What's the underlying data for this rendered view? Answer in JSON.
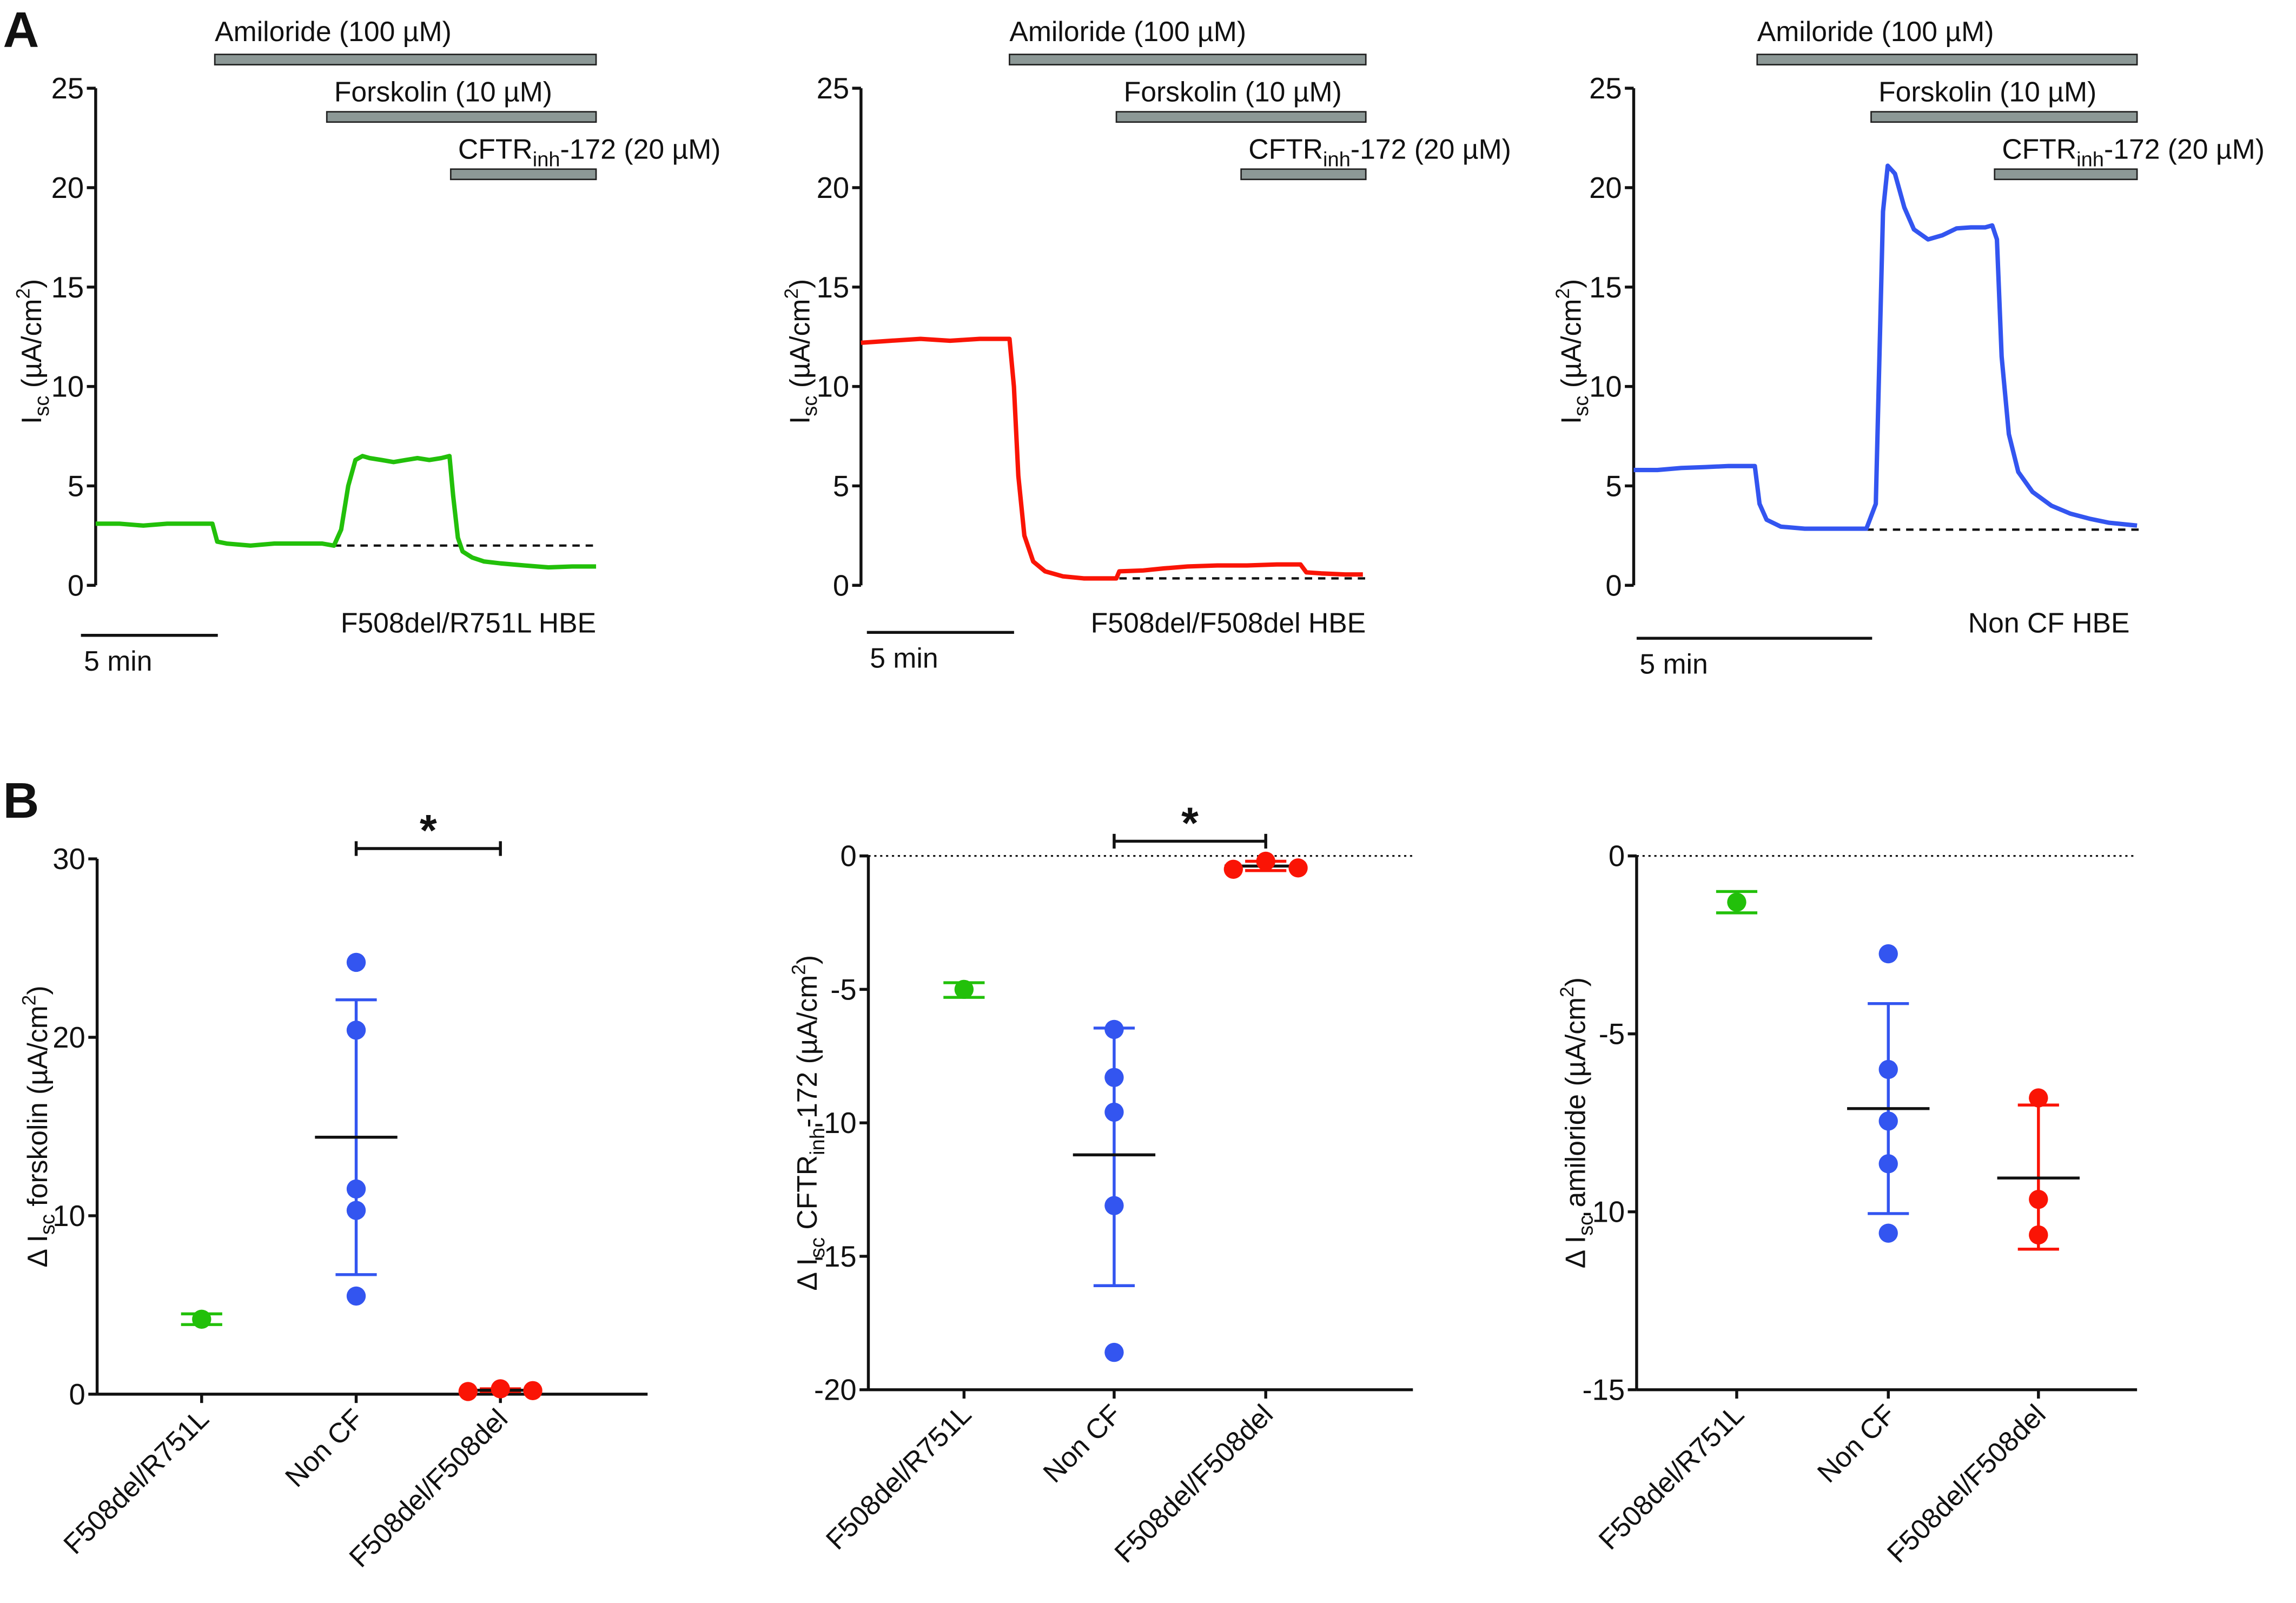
{
  "figure": {
    "panel_letters": [
      "A",
      "B"
    ]
  },
  "colors": {
    "F508del/R751L": "#22c00a",
    "F508del/F508del": "#fa1405",
    "Non CF": "#3355f0",
    "drug_bar_fill": "#8c9896",
    "axis": "#111111"
  },
  "chart_data": [
    {
      "id": "A1",
      "type": "line",
      "title": "F508del/R751L HBE",
      "ylabel": "I_sc (µA/cm²)",
      "ylabel_parts": {
        "main": "I",
        "sub": "sc",
        "rest": " (µA/cm",
        "sup": "2",
        "end": ")"
      },
      "ylim": [
        0,
        25
      ],
      "yticks": [
        "0",
        "5",
        "10",
        "15",
        "20",
        "25"
      ],
      "xlim_min": [
        0,
        21
      ],
      "scale_bar": {
        "label": "5 min",
        "minutes": 5
      },
      "color": "#22c00a",
      "drugs": [
        {
          "name": "Amiloride (100 µM)",
          "start_min": 5,
          "end_min": 21
        },
        {
          "name": "Forskolin (10 µM)",
          "start_min": 9.7,
          "end_min": 21
        },
        {
          "name": "CFTRinh-172 (20 µM)",
          "name_parts": [
            "CFTR",
            "inh",
            "-172 (20 µM)"
          ],
          "start_min": 14.9,
          "end_min": 21
        }
      ],
      "baseline": {
        "value": 2.0,
        "from_min": 10,
        "to_min": 20.9
      },
      "x_min": [
        0,
        1,
        2,
        3,
        4,
        4.9,
        5.1,
        5.5,
        6.5,
        7.5,
        8.5,
        9.5,
        10.0,
        10.3,
        10.6,
        10.9,
        11.2,
        11.5,
        12.0,
        12.5,
        13.0,
        13.5,
        14.0,
        14.5,
        14.85,
        15.0,
        15.2,
        15.4,
        15.8,
        16.3,
        17,
        18,
        19,
        20,
        21
      ],
      "y": [
        3.1,
        3.1,
        3.0,
        3.1,
        3.1,
        3.1,
        2.2,
        2.1,
        2.0,
        2.1,
        2.1,
        2.1,
        2.0,
        2.8,
        5.0,
        6.3,
        6.5,
        6.4,
        6.3,
        6.2,
        6.3,
        6.4,
        6.3,
        6.4,
        6.5,
        4.5,
        2.4,
        1.7,
        1.4,
        1.2,
        1.1,
        1.0,
        0.9,
        0.95,
        0.95
      ]
    },
    {
      "id": "A2",
      "type": "line",
      "title": "F508del/F508del HBE",
      "ylabel": "I_sc (µA/cm²)",
      "ylabel_parts": {
        "main": "I",
        "sub": "sc",
        "rest": " (µA/cm",
        "sup": "2",
        "end": ")"
      },
      "ylim": [
        0,
        25
      ],
      "yticks": [
        "0",
        "5",
        "10",
        "15",
        "20",
        "25"
      ],
      "xlim_min": [
        0,
        17
      ],
      "scale_bar": {
        "label": "5 min",
        "minutes": 5
      },
      "color": "#fa1405",
      "drugs": [
        {
          "name": "Amiloride (100 µM)",
          "start_min": 5,
          "end_min": 17
        },
        {
          "name": "Forskolin (10 µM)",
          "start_min": 8.6,
          "end_min": 17
        },
        {
          "name": "CFTRinh-172 (20 µM)",
          "name_parts": [
            "CFTR",
            "inh",
            "-172 (20 µM)"
          ],
          "start_min": 12.8,
          "end_min": 17
        }
      ],
      "baseline": {
        "value": 0.35,
        "from_min": 8.7,
        "to_min": 17
      },
      "x_min": [
        0,
        1,
        2,
        3,
        4,
        5.0,
        5.15,
        5.3,
        5.5,
        5.8,
        6.2,
        6.8,
        7.5,
        8.0,
        8.6,
        8.7,
        9.5,
        10.2,
        11,
        12,
        13,
        14,
        14.8,
        15.0,
        15.5,
        16.3,
        16.9
      ],
      "y": [
        12.2,
        12.3,
        12.4,
        12.3,
        12.4,
        12.4,
        10,
        5.5,
        2.5,
        1.2,
        0.7,
        0.45,
        0.35,
        0.35,
        0.35,
        0.7,
        0.75,
        0.85,
        0.95,
        1.0,
        1.0,
        1.05,
        1.05,
        0.65,
        0.6,
        0.55,
        0.55
      ]
    },
    {
      "id": "A3",
      "type": "line",
      "title": "Non CF HBE",
      "ylabel": "I_sc (µA/cm²)",
      "ylabel_parts": {
        "main": "I",
        "sub": "sc",
        "rest": " (µA/cm",
        "sup": "2",
        "end": ")"
      },
      "ylim": [
        0,
        25
      ],
      "yticks": [
        "0",
        "5",
        "10",
        "15",
        "20",
        "25"
      ],
      "xlim_min": [
        0,
        10.6
      ],
      "scale_bar": {
        "label": "5 min",
        "minutes": 5
      },
      "color": "#3355f0",
      "drugs": [
        {
          "name": "Amiloride (100 µM)",
          "start_min": 2.6,
          "end_min": 10.6
        },
        {
          "name": "Forskolin (10 µM)",
          "start_min": 5.0,
          "end_min": 10.6
        },
        {
          "name": "CFTRinh-172 (20 µM)",
          "name_parts": [
            "CFTR",
            "inh",
            "-172 (20 µM)"
          ],
          "start_min": 7.6,
          "end_min": 10.6
        }
      ],
      "baseline": {
        "value": 2.8,
        "from_min": 4.9,
        "to_min": 10.65
      },
      "x_min": [
        0,
        0.5,
        1.0,
        1.5,
        2.0,
        2.55,
        2.65,
        2.8,
        3.1,
        3.6,
        4.2,
        4.9,
        5.1,
        5.25,
        5.35,
        5.5,
        5.7,
        5.9,
        6.2,
        6.5,
        6.8,
        7.1,
        7.4,
        7.55,
        7.65,
        7.75,
        7.9,
        8.1,
        8.4,
        8.8,
        9.2,
        9.6,
        10.0,
        10.6
      ],
      "y": [
        5.8,
        5.8,
        5.9,
        5.95,
        6.0,
        6.0,
        4.1,
        3.3,
        2.95,
        2.85,
        2.85,
        2.85,
        4.1,
        18.8,
        21.1,
        20.7,
        19.0,
        17.9,
        17.4,
        17.6,
        17.95,
        18.0,
        18.0,
        18.1,
        17.4,
        11.5,
        7.6,
        5.7,
        4.7,
        4.0,
        3.6,
        3.35,
        3.15,
        3.0
      ]
    },
    {
      "id": "B1",
      "type": "scatter",
      "ylabel": "Δ I_sc forskolin (µA/cm²)",
      "ylabel_parts": {
        "pre": "Δ I",
        "sub": "sc",
        "rest": " forskolin (µA/cm",
        "sup": "2",
        "end": ")"
      },
      "ylim": [
        0,
        30
      ],
      "yticks": [
        "0",
        "10",
        "20",
        "30"
      ],
      "categories": [
        "F508del/R751L",
        "Non CF",
        "F508del/F508del"
      ],
      "zero_line": false,
      "series": [
        {
          "name": "F508del/R751L",
          "color": "#22c00a",
          "points": [
            4.2
          ],
          "mean": 4.2,
          "sd": [
            3.9,
            4.5
          ]
        },
        {
          "name": "Non CF",
          "color": "#3355f0",
          "points": [
            24.2,
            20.4,
            11.5,
            10.3,
            5.5
          ],
          "mean": 14.4,
          "sd": [
            6.7,
            22.1
          ]
        },
        {
          "name": "F508del/F508del",
          "color": "#fa1405",
          "points": [
            0.15,
            0.3,
            0.2
          ],
          "mean": 0.22,
          "sd": [
            0.15,
            0.3
          ]
        }
      ],
      "significance": {
        "label": "*",
        "from": "Non CF",
        "to": "F508del/F508del",
        "value": 31
      }
    },
    {
      "id": "B2",
      "type": "scatter",
      "ylabel": "Δ I_sc CFTRinh-172 (µA/cm²)",
      "ylabel_parts": {
        "pre": "Δ I",
        "sub": "sc",
        "mid": " CFTR",
        "sub2": "inh",
        "rest": "-172 (µA/cm",
        "sup": "2",
        "end": ")"
      },
      "ylim": [
        -20,
        0
      ],
      "yticks": [
        "0",
        "-5",
        "-10",
        "-15",
        "-20"
      ],
      "categories": [
        "F508del/R751L",
        "Non CF",
        "F508del/F508del"
      ],
      "zero_line": true,
      "series": [
        {
          "name": "F508del/R751L",
          "color": "#22c00a",
          "points": [
            -5.0
          ],
          "mean": -5.0,
          "sd": [
            -5.3,
            -4.75
          ]
        },
        {
          "name": "Non CF",
          "color": "#3355f0",
          "points": [
            -6.5,
            -8.3,
            -9.6,
            -13.1,
            -18.6
          ],
          "mean": -11.2,
          "sd": [
            -16.1,
            -6.45
          ]
        },
        {
          "name": "F508del/F508del",
          "color": "#fa1405",
          "points": [
            -0.5,
            -0.2,
            -0.45
          ],
          "mean": -0.38,
          "sd": [
            -0.55,
            -0.2
          ]
        }
      ],
      "significance": {
        "label": "*",
        "from": "Non CF",
        "to": "F508del/F508del",
        "value": 0.5
      }
    },
    {
      "id": "B3",
      "type": "scatter",
      "ylabel": "Δ I_sc amiloride (µA/cm²)",
      "ylabel_parts": {
        "pre": "Δ I",
        "sub": "sc",
        "rest": " amiloride (µA/cm",
        "sup": "2",
        "end": ")"
      },
      "ylim": [
        -15,
        0
      ],
      "yticks": [
        "0",
        "-5",
        "-10",
        "-15"
      ],
      "categories": [
        "F508del/R751L",
        "Non CF",
        "F508del/F508del"
      ],
      "zero_line": true,
      "series": [
        {
          "name": "F508del/R751L",
          "color": "#22c00a",
          "points": [
            -1.3
          ],
          "mean": -1.3,
          "sd": [
            -1.6,
            -1.0
          ]
        },
        {
          "name": "Non CF",
          "color": "#3355f0",
          "points": [
            -2.75,
            -6.0,
            -7.45,
            -8.65,
            -10.6
          ],
          "mean": -7.1,
          "sd": [
            -10.05,
            -4.15
          ]
        },
        {
          "name": "F508del/F508del",
          "color": "#fa1405",
          "points": [
            -6.8,
            -9.65,
            -10.65
          ],
          "mean": -9.05,
          "sd": [
            -11.05,
            -7.0
          ]
        }
      ]
    }
  ]
}
